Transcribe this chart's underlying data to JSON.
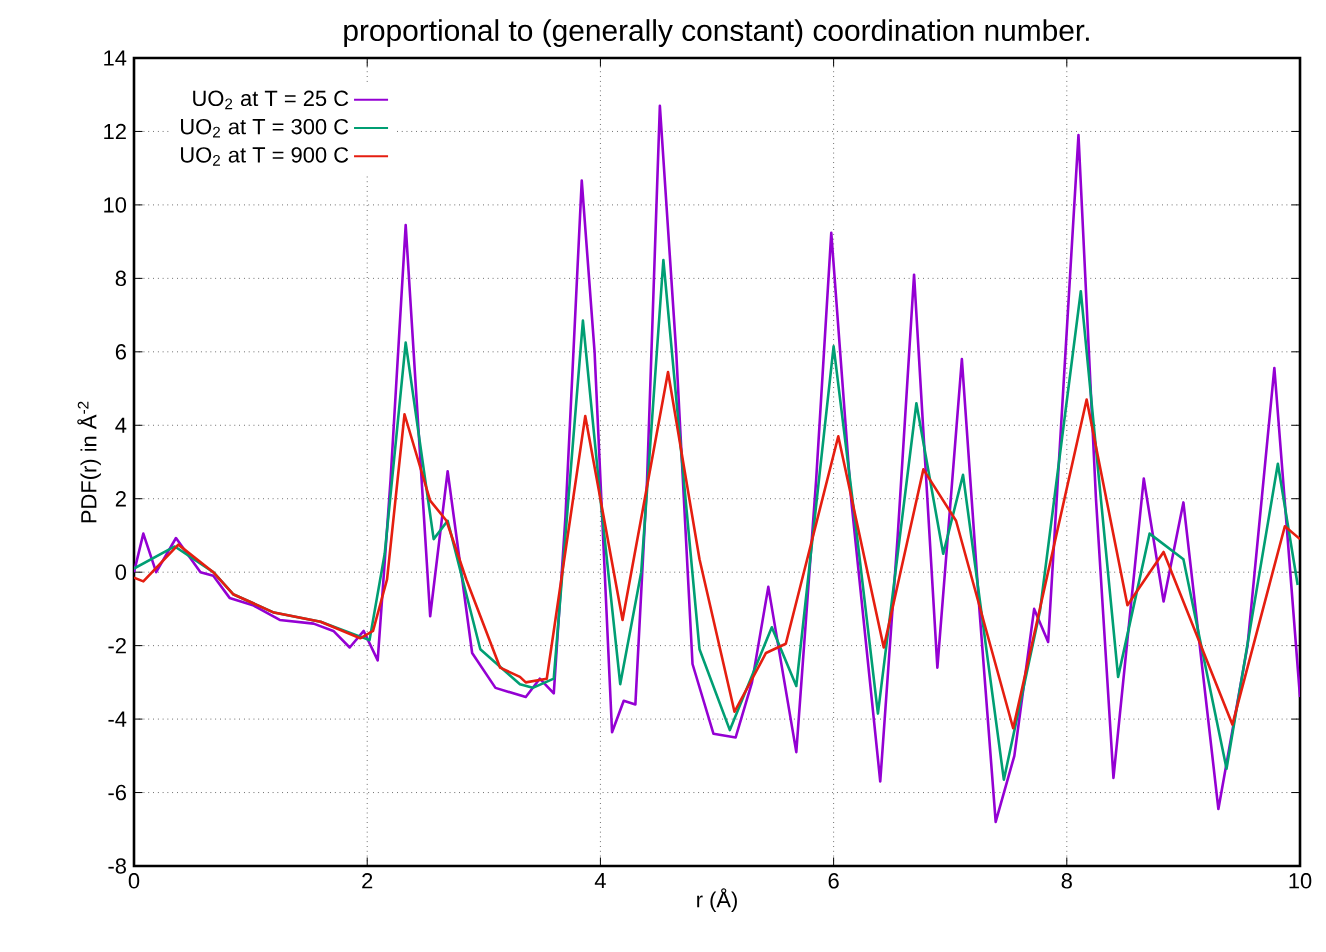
{
  "chart_data": {
    "type": "line",
    "title": "proportional to (generally constant) coordination number.",
    "xlabel": "r (Å)",
    "ylabel": "PDF(r) in Å$^{-2}$",
    "xlim": [
      0,
      10
    ],
    "ylim": [
      -8,
      14
    ],
    "xticks": [
      0,
      2,
      4,
      6,
      8,
      10
    ],
    "yticks": [
      -8,
      -6,
      -4,
      -2,
      0,
      2,
      4,
      6,
      8,
      10,
      12,
      14
    ],
    "grid": true,
    "legend": "top left",
    "line_style": "solid",
    "marker": "none",
    "series": [
      {
        "name": "UO$_{2}$ at T = 25 C",
        "color": "#9400d3",
        "x": [
          0,
          0.08,
          0.19,
          0.36,
          0.57,
          0.68,
          0.82,
          1.02,
          1.25,
          1.54,
          1.71,
          1.85,
          1.97,
          2.09,
          2.2,
          2.33,
          2.54,
          2.69,
          2.9,
          3.1,
          3.36,
          3.48,
          3.6,
          3.7,
          3.84,
          3.95,
          4.1,
          4.2,
          4.3,
          4.4,
          4.51,
          4.65,
          4.79,
          4.97,
          5.16,
          5.3,
          5.44,
          5.68,
          5.85,
          5.98,
          6.15,
          6.4,
          6.55,
          6.69,
          6.89,
          7.1,
          7.25,
          7.39,
          7.55,
          7.72,
          7.84,
          8.1,
          8.25,
          8.4,
          8.66,
          8.83,
          9.0,
          9.3,
          9.55,
          9.78,
          10
        ],
        "values": [
          0,
          1.05,
          0,
          0.93,
          0,
          -0.1,
          -0.7,
          -0.9,
          -1.3,
          -1.4,
          -1.6,
          -2.05,
          -1.6,
          -2.4,
          2.5,
          9.45,
          -1.2,
          2.75,
          -2.2,
          -3.15,
          -3.4,
          -2.9,
          -3.3,
          1.5,
          10.66,
          6,
          -4.36,
          -3.5,
          -3.6,
          2.5,
          12.7,
          6,
          -2.5,
          -4.4,
          -4.5,
          -3,
          -0.4,
          -4.9,
          2.5,
          9.24,
          2,
          -5.7,
          1,
          8.1,
          -2.6,
          5.8,
          -1,
          -6.8,
          -5,
          -1.0,
          -1.9,
          11.9,
          2,
          -5.6,
          2.55,
          -0.8,
          1.9,
          -6.45,
          -2,
          5.56,
          -3.4
        ]
      },
      {
        "name": "UO$_{2}$ at T = 300 C",
        "color": "#009e73",
        "x": [
          0,
          0.35,
          0.68,
          0.85,
          1.2,
          1.6,
          2.02,
          2.15,
          2.33,
          2.57,
          2.69,
          2.97,
          3.31,
          3.42,
          3.6,
          3.85,
          4.0,
          4.17,
          4.35,
          4.54,
          4.85,
          5.11,
          5.47,
          5.68,
          6.0,
          6.2,
          6.38,
          6.71,
          6.94,
          7.11,
          7.46,
          7.77,
          8.12,
          8.44,
          8.71,
          9.0,
          9.37,
          9.81,
          9.98
        ],
        "values": [
          0.1,
          0.7,
          0,
          -0.6,
          -1.1,
          -1.35,
          -1.85,
          0.5,
          6.25,
          0.9,
          1.4,
          -2.1,
          -3.05,
          -3.15,
          -2.9,
          6.85,
          2,
          -3.05,
          0,
          8.5,
          -2.1,
          -4.3,
          -1.5,
          -3.1,
          6.15,
          1,
          -3.85,
          4.6,
          0.5,
          2.65,
          -5.65,
          -1.05,
          7.65,
          -2.85,
          1.05,
          0.35,
          -5.35,
          2.95,
          -0.35
        ]
      },
      {
        "name": "UO$_{2}$ at T = 900 C",
        "color": "#e51e10",
        "x": [
          0,
          0.08,
          0.38,
          0.68,
          0.85,
          1.2,
          1.6,
          1.94,
          2.05,
          2.17,
          2.32,
          2.54,
          2.68,
          2.85,
          3.14,
          3.31,
          3.36,
          3.54,
          3.87,
          4.19,
          4.58,
          4.85,
          5.15,
          5.42,
          5.59,
          6.04,
          6.43,
          6.77,
          7.05,
          7.54,
          8.17,
          8.52,
          8.83,
          9.42,
          9.87,
          10
        ],
        "values": [
          -0.15,
          -0.25,
          0.75,
          0,
          -0.6,
          -1.1,
          -1.35,
          -1.8,
          -1.6,
          -0.2,
          4.3,
          1.95,
          1.4,
          -0.2,
          -2.6,
          -2.85,
          -3.0,
          -2.9,
          4.25,
          -1.3,
          5.45,
          0.35,
          -3.8,
          -2.2,
          -1.95,
          3.7,
          -2.05,
          2.8,
          1.4,
          -4.25,
          4.7,
          -0.9,
          0.55,
          -4.15,
          1.25,
          0.9
        ]
      }
    ]
  }
}
